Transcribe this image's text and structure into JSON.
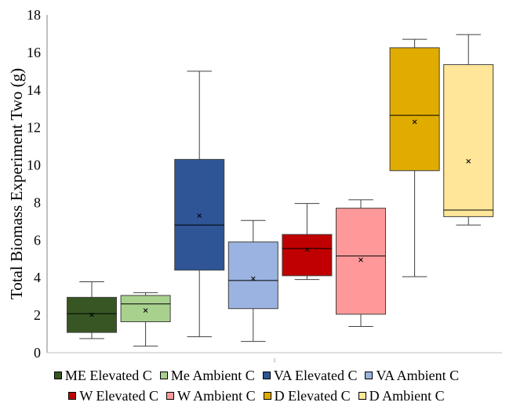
{
  "chart_data": {
    "type": "box",
    "title": "",
    "xlabel": "",
    "ylabel": "Total Biomass Experiment Two (g)",
    "ylim": [
      0,
      18
    ],
    "yticks": [
      0,
      2,
      4,
      6,
      8,
      10,
      12,
      14,
      16,
      18
    ],
    "grid": false,
    "legend_position": "bottom",
    "series": [
      {
        "name": "ME Elevated C",
        "color": "#375623",
        "min": 0.75,
        "q1": 1.08,
        "median": 2.08,
        "q3": 2.95,
        "max": 3.78,
        "mean": 2.02
      },
      {
        "name": "Me Ambient C",
        "color": "#a9d18e",
        "min": 0.35,
        "q1": 1.65,
        "median": 2.6,
        "q3": 3.05,
        "max": 3.2,
        "mean": 2.25
      },
      {
        "name": "VA Elevated C",
        "color": "#2f5597",
        "min": 0.85,
        "q1": 4.4,
        "median": 6.8,
        "q3": 10.3,
        "max": 15.0,
        "mean": 7.3
      },
      {
        "name": "VA Ambient C",
        "color": "#9bb3e0",
        "min": 0.6,
        "q1": 2.35,
        "median": 3.85,
        "q3": 5.9,
        "max": 7.05,
        "mean": 3.95
      },
      {
        "name": "W Elevated C",
        "color": "#c00000",
        "min": 3.9,
        "q1": 4.1,
        "median": 5.55,
        "q3": 6.3,
        "max": 7.95,
        "mean": 5.5
      },
      {
        "name": "W Ambient C",
        "color": "#ff9999",
        "min": 1.4,
        "q1": 2.05,
        "median": 5.15,
        "q3": 7.7,
        "max": 8.15,
        "mean": 4.95
      },
      {
        "name": "D Elevated C",
        "color": "#e0ac00",
        "min": 4.05,
        "q1": 9.7,
        "median": 12.65,
        "q3": 16.25,
        "max": 16.7,
        "mean": 12.3
      },
      {
        "name": "D Ambient C",
        "color": "#ffe699",
        "min": 6.8,
        "q1": 7.25,
        "median": 7.6,
        "q3": 15.35,
        "max": 16.95,
        "mean": 10.2
      }
    ],
    "x_tick_label": "1"
  },
  "legend_rows": [
    [
      0,
      1,
      2,
      3
    ],
    [
      4,
      5,
      6,
      7
    ]
  ]
}
